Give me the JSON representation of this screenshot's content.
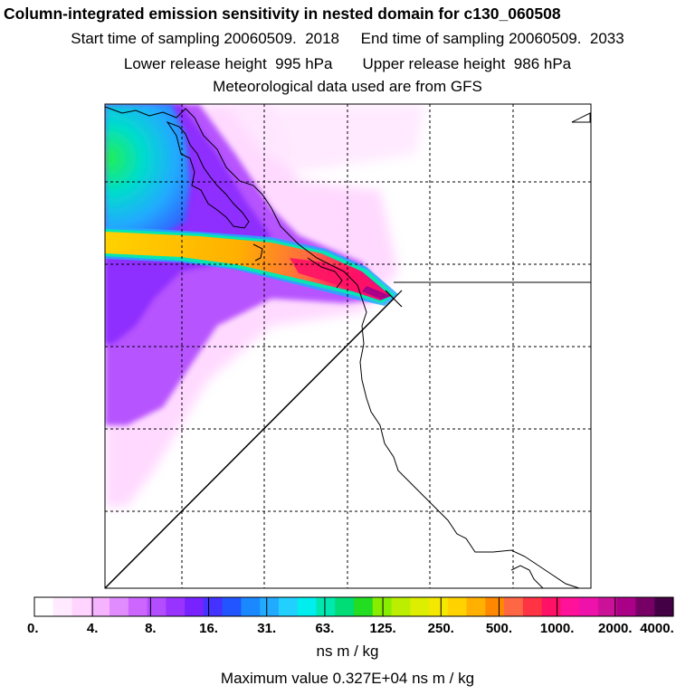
{
  "header": {
    "title": "Column-integrated emission sensitivity in nested domain for c130_060508",
    "line_time": "Start time of sampling 20060509.  2018     End time of sampling 20060509.  2033",
    "line_height": "Lower release height  995 hPa       Upper release height  986 hPa",
    "line_met": "Meteorological data used are from GFS"
  },
  "chart_data": {
    "type": "heatmap",
    "title": "Column-integrated emission sensitivity in nested domain for c130_060508",
    "start_time": "20060509. 2018",
    "end_time": "20060509. 2033",
    "lower_release_height_hPa": 995,
    "upper_release_height_hPa": 986,
    "met_data": "GFS",
    "colorbar_tick_labels": [
      "0.",
      "4.",
      "8.",
      "16.",
      "31.",
      "63.",
      "125.",
      "250.",
      "500.",
      "1000.",
      "2000.",
      "4000."
    ],
    "colorbar_ticks": [
      0,
      4,
      8,
      16,
      31,
      63,
      125,
      250,
      500,
      1000,
      2000,
      4000
    ],
    "colorbar_colors": [
      "#ffffff",
      "#ffeaff",
      "#ffd5ff",
      "#f6b3ff",
      "#e08cff",
      "#cc66ff",
      "#b34dff",
      "#9933ff",
      "#7722ff",
      "#4433ff",
      "#2255ff",
      "#1a88ff",
      "#22aaff",
      "#22d0ff",
      "#00eeee",
      "#00e8b0",
      "#00dd77",
      "#22dd22",
      "#88ee00",
      "#bbee00",
      "#ddee00",
      "#f4e800",
      "#ffd200",
      "#ffb000",
      "#ff8800",
      "#ff6644",
      "#ff3344",
      "#ff1166",
      "#ff1199",
      "#ee11aa",
      "#cc1199",
      "#aa0088",
      "#770066",
      "#440044"
    ],
    "units": "ns m / kg",
    "max_value_text": "Maximum value  0.327E+04 ns m / kg",
    "max_value": 3270
  }
}
